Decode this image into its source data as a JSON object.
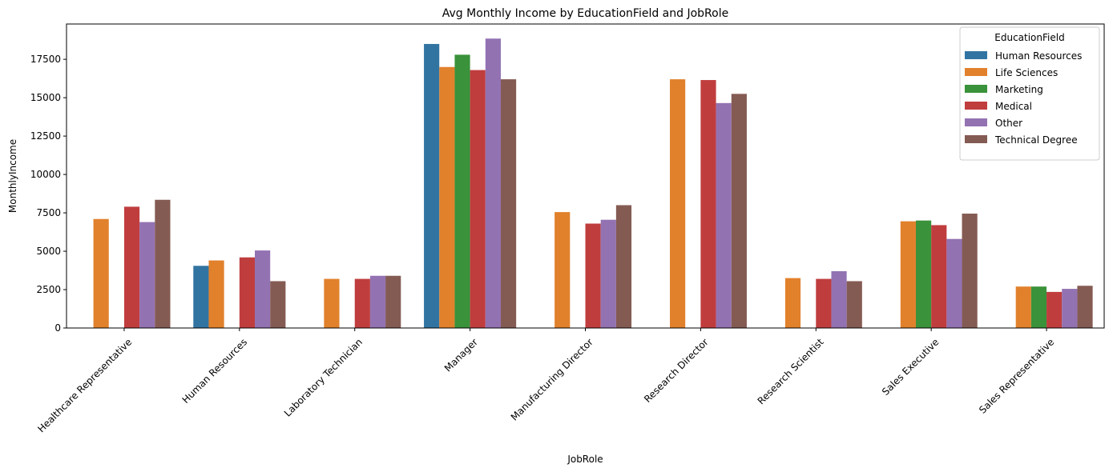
{
  "chart_data": {
    "type": "bar",
    "title": "Avg Monthly Income by EducationField and JobRole",
    "xlabel": "JobRole",
    "ylabel": "MonthlyIncome",
    "ylim": [
      0,
      19800
    ],
    "yticks": [
      0,
      2500,
      5000,
      7500,
      10000,
      12500,
      15000,
      17500
    ],
    "grid": false,
    "legend": {
      "title": "EducationField",
      "placement": "top-right"
    },
    "categories": [
      "Healthcare Representative",
      "Human Resources",
      "Laboratory Technician",
      "Manager",
      "Manufacturing Director",
      "Research Director",
      "Research Scientist",
      "Sales Executive",
      "Sales Representative"
    ],
    "series": [
      {
        "name": "Human Resources",
        "color": "#3274a1",
        "values": [
          null,
          4050,
          null,
          18500,
          null,
          null,
          null,
          null,
          null
        ]
      },
      {
        "name": "Life Sciences",
        "color": "#e1812c",
        "values": [
          7100,
          4400,
          3200,
          17000,
          7550,
          16200,
          3250,
          6950,
          2700
        ]
      },
      {
        "name": "Marketing",
        "color": "#3a923a",
        "values": [
          null,
          null,
          null,
          17800,
          null,
          null,
          null,
          7000,
          2700
        ]
      },
      {
        "name": "Medical",
        "color": "#c03d3e",
        "values": [
          7900,
          4600,
          3200,
          16800,
          6800,
          16150,
          3200,
          6700,
          2350
        ]
      },
      {
        "name": "Other",
        "color": "#9372b2",
        "values": [
          6900,
          5050,
          3400,
          18850,
          7050,
          14650,
          3700,
          5800,
          2550
        ]
      },
      {
        "name": "Technical Degree",
        "color": "#845b53",
        "values": [
          8350,
          3050,
          3400,
          16200,
          8000,
          15250,
          3050,
          7450,
          2750
        ]
      }
    ]
  }
}
